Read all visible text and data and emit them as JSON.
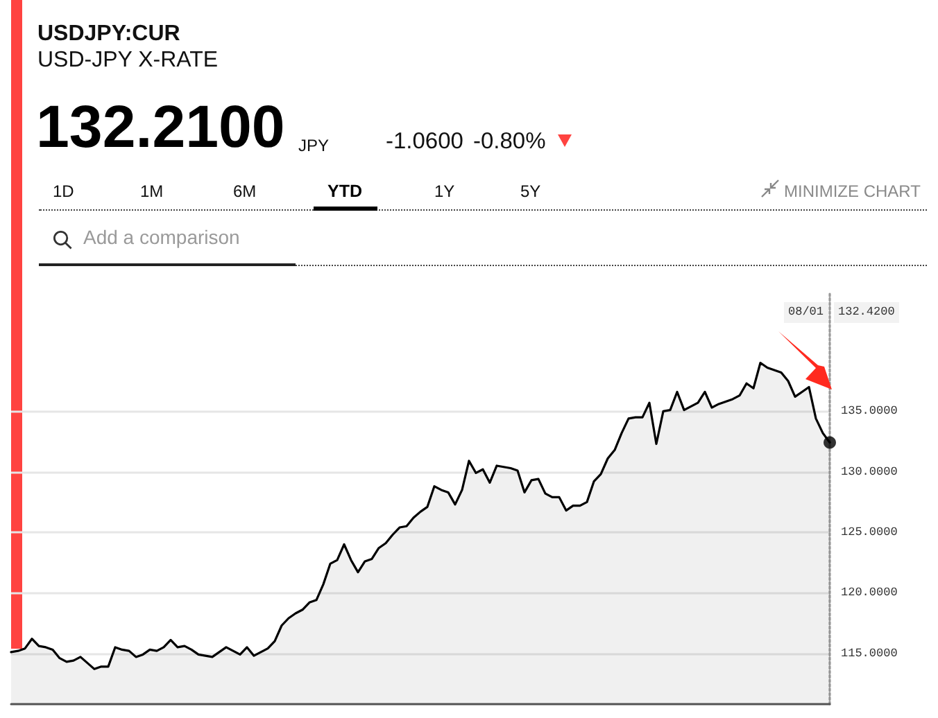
{
  "chart_data": {
    "type": "area",
    "title": "USDJPY:CUR",
    "subtitle": "USD-JPY X-RATE",
    "categories": [
      null,
      null,
      null,
      null,
      null,
      null,
      null,
      null,
      null,
      null,
      null,
      null,
      null,
      null,
      null,
      null,
      null,
      null,
      null,
      null,
      null,
      null,
      null,
      null,
      null,
      null,
      null,
      null,
      null,
      null,
      null,
      null,
      null,
      null,
      null,
      null,
      null,
      null,
      null,
      null,
      null,
      null,
      null,
      null,
      null,
      null,
      null,
      null,
      null,
      null,
      null,
      null,
      null,
      null,
      null,
      null,
      null,
      null,
      null,
      null,
      null,
      null,
      null,
      null,
      null,
      null,
      null,
      null,
      null,
      null,
      null,
      null,
      null,
      null,
      null,
      null,
      null,
      null,
      null,
      null,
      null,
      null,
      null,
      null,
      null,
      null,
      null,
      null,
      null,
      null,
      null,
      null,
      null,
      null,
      null,
      null,
      null,
      null,
      null,
      null,
      null,
      null,
      null,
      null,
      null,
      null,
      null,
      null,
      null,
      null,
      null,
      null,
      null,
      null,
      null,
      null,
      null,
      null,
      null
    ],
    "series": [
      {
        "color": "#000000",
        "marker": "none",
        "values": [
          115.1,
          115.2,
          115.4,
          116.2,
          115.6,
          115.5,
          115.3,
          114.6,
          114.3,
          114.4,
          114.7,
          114.2,
          113.7,
          113.9,
          113.9,
          115.5,
          115.3,
          115.2,
          114.7,
          114.9,
          115.3,
          115.2,
          115.5,
          116.1,
          115.5,
          115.6,
          115.3,
          114.9,
          114.8,
          114.7,
          115.1,
          115.5,
          115.2,
          114.9,
          115.5,
          114.8,
          115.1,
          115.4,
          116.0,
          117.3,
          117.9,
          118.3,
          118.6,
          119.2,
          119.4,
          120.7,
          122.4,
          122.7,
          124.0,
          122.7,
          121.7,
          122.6,
          122.8,
          123.7,
          124.1,
          124.8,
          125.4,
          125.5,
          126.2,
          126.7,
          127.1,
          128.8,
          128.5,
          128.3,
          127.3,
          128.5,
          130.9,
          129.9,
          130.2,
          129.1,
          130.5,
          130.4,
          130.3,
          130.1,
          128.3,
          129.3,
          129.4,
          128.2,
          127.9,
          127.9,
          126.8,
          127.2,
          127.2,
          127.5,
          129.2,
          129.8,
          131.1,
          131.8,
          133.2,
          134.4,
          134.5,
          134.5,
          135.7,
          132.3,
          135.0,
          135.1,
          136.6,
          135.1,
          135.4,
          135.7,
          136.6,
          135.3,
          135.6,
          135.8,
          136.0,
          136.3,
          137.3,
          136.9,
          139.0,
          138.6,
          138.4,
          138.2,
          137.5,
          136.2,
          136.6,
          137.0,
          134.4,
          133.2,
          132.42
        ]
      },
      {
        "type": "scatter",
        "color": "#000000",
        "marker": "circle",
        "values": [
          null,
          null,
          null,
          null,
          null,
          null,
          null,
          null,
          null,
          null,
          null,
          null,
          null,
          null,
          null,
          null,
          null,
          null,
          null,
          null,
          null,
          null,
          null,
          null,
          null,
          null,
          null,
          null,
          null,
          null,
          null,
          null,
          null,
          null,
          null,
          null,
          null,
          null,
          null,
          null,
          null,
          null,
          null,
          null,
          null,
          null,
          null,
          null,
          null,
          null,
          null,
          null,
          null,
          null,
          null,
          null,
          null,
          null,
          null,
          null,
          null,
          null,
          null,
          null,
          null,
          null,
          null,
          null,
          null,
          null,
          null,
          null,
          null,
          null,
          null,
          null,
          null,
          null,
          null,
          null,
          null,
          null,
          null,
          null,
          null,
          null,
          null,
          null,
          null,
          null,
          null,
          null,
          null,
          null,
          null,
          null,
          null,
          null,
          null,
          null,
          null,
          null,
          null,
          null,
          null,
          null,
          null,
          null,
          null,
          null,
          null,
          null,
          null,
          null,
          null,
          null,
          null,
          null,
          132.42
        ]
      }
    ],
    "ylim": [
      110.8,
      144.7
    ],
    "yticks": [
      {
        "value": 115,
        "label": "115.0000"
      },
      {
        "value": 120,
        "label": "120.0000"
      },
      {
        "value": 125,
        "label": "125.0000"
      },
      {
        "value": 130,
        "label": "130.0000"
      },
      {
        "value": 135,
        "label": "135.0000"
      }
    ],
    "tick_labels": "y",
    "grid": "y",
    "annotations": [
      "132.2100",
      "JPY",
      "-1.0600",
      "-0.80%",
      "1D",
      "1M",
      "6M",
      "YTD",
      "1Y",
      "5Y",
      "MINIMIZE CHART",
      "Add a comparison",
      "08/01",
      "132.4200"
    ]
  }
}
